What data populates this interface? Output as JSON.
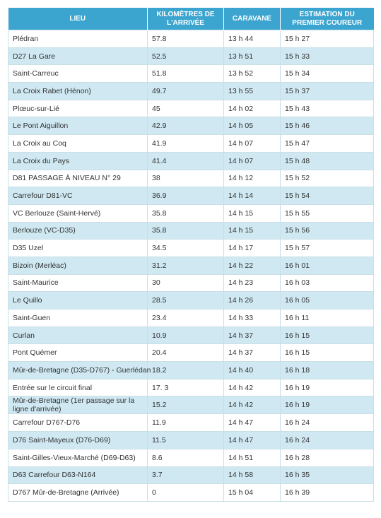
{
  "headers": [
    "LIEU",
    "KILOMÈTRES DE L'ARRIVÉE",
    "CARAVANE",
    "ESTIMATION DU PREMIER COUREUR"
  ],
  "rows": [
    [
      "Plédran",
      "57.8",
      "13 h 44",
      "15 h 27"
    ],
    [
      "D27 La Gare",
      "52.5",
      "13 h 51",
      "15 h 33"
    ],
    [
      "Saint-Carreuc",
      "51.8",
      "13 h 52",
      "15 h 34"
    ],
    [
      "La Croix Rabet (Hénon)",
      "49.7",
      "13 h 55",
      "15 h 37"
    ],
    [
      "Plœuc-sur-Lié",
      "45",
      "14 h 02",
      "15 h 43"
    ],
    [
      "Le Pont Aiguillon",
      "42.9",
      "14 h 05",
      "15 h 46"
    ],
    [
      "La Croix au Coq",
      "41.9",
      "14 h 07",
      "15 h 47"
    ],
    [
      "La Croix du Pays",
      "41.4",
      "14 h 07",
      "15 h 48"
    ],
    [
      "D81 PASSAGE À NIVEAU N° 29",
      "38",
      "14 h 12",
      "15 h 52"
    ],
    [
      "Carrefour D81-VC",
      "36.9",
      "14 h 14",
      "15 h 54"
    ],
    [
      "VC Berlouze (Saint-Hervé)",
      "35.8",
      "14 h 15",
      "15 h 55"
    ],
    [
      "Berlouze (VC-D35)",
      "35.8",
      "14 h 15",
      "15 h 56"
    ],
    [
      "D35 Uzel",
      "34.5",
      "14 h 17",
      "15 h 57"
    ],
    [
      "Bizoin (Merléac)",
      "31.2",
      "14 h 22",
      "16 h 01"
    ],
    [
      "Saint-Maurice",
      "30",
      "14 h 23",
      "16 h 03"
    ],
    [
      "Le Quillo",
      "28.5",
      "14 h 26",
      "16 h 05"
    ],
    [
      "Saint-Guen",
      "23.4",
      "14 h 33",
      "16 h 11"
    ],
    [
      "Curlan",
      "10.9",
      "14 h 37",
      "16 h 15"
    ],
    [
      "Pont Quémer",
      "20.4",
      "14 h 37",
      "16 h 15"
    ],
    [
      "Mûr-de-Bretagne (D35-D767) - Guerlédan",
      "18.2",
      "14 h 40",
      "16 h 18"
    ],
    [
      "Entrée sur le circuit final",
      "17. 3",
      "14 h 42",
      "16 h 19"
    ],
    [
      "Mûr-de-Bretagne (1er passage sur la ligne d'arrivée)",
      "15.2",
      "14 h 42",
      "16 h 19"
    ],
    [
      "Carrefour D767-D76",
      "11.9",
      "14 h 47",
      "16 h 24"
    ],
    [
      "D76 Saint-Mayeux (D76-D69)",
      "11.5",
      "14 h 47",
      "16 h 24"
    ],
    [
      "Saint-Gilles-Vieux-Marché (D69-D63)",
      "8.6",
      "14 h 51",
      "16 h 28"
    ],
    [
      "D63 Carrefour D63-N164",
      "3.7",
      "14 h 58",
      "16 h 35"
    ],
    [
      "D767 Mûr-de-Bretagne (Arrivée)",
      "0",
      "15 h 04",
      "16 h 39"
    ]
  ],
  "colors": {
    "header_bg": "#3ba4cf",
    "stripe_bg": "#cfe8f2",
    "border": "#c9dfe8",
    "text": "#333333"
  }
}
